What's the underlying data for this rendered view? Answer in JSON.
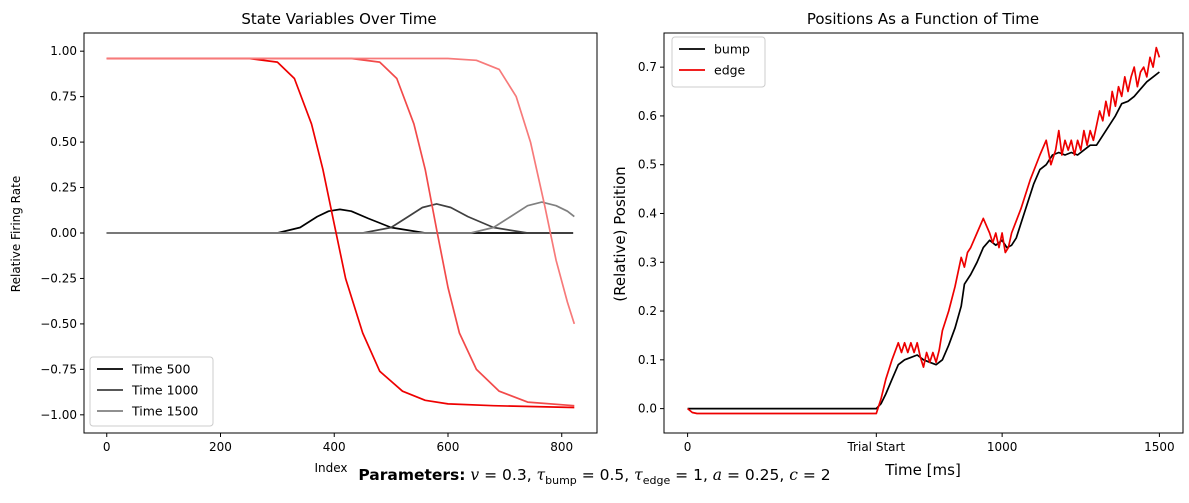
{
  "chart_data": [
    {
      "type": "line",
      "title": "State Variables Over Time",
      "xlabel": "Index",
      "ylabel": "Relative Firing Rate",
      "xlim": [
        -40,
        862
      ],
      "ylim": [
        -1.1,
        1.1
      ],
      "xticks": [
        0,
        200,
        400,
        600,
        800
      ],
      "xtick_labels": [
        "0",
        "200",
        "400",
        "600",
        "800"
      ],
      "yticks": [
        1.0,
        0.75,
        0.5,
        0.25,
        0.0,
        -0.25,
        -0.5,
        -0.75,
        -1.0
      ],
      "ytick_labels": [
        "1.00",
        "0.75",
        "0.50",
        "0.25",
        "0.00",
        "−0.25",
        "−0.50",
        "−0.75",
        "−1.00"
      ],
      "legend_position": "lower left",
      "legend": [
        "Time 500",
        "Time 1000",
        "Time 1500"
      ],
      "series": [
        {
          "name": "Time 500",
          "color": "#000000",
          "x": [
            0,
            300,
            340,
            370,
            390,
            410,
            430,
            460,
            500,
            560,
            820
          ],
          "y": [
            0,
            0,
            0.03,
            0.09,
            0.12,
            0.13,
            0.12,
            0.08,
            0.03,
            0,
            0
          ]
        },
        {
          "name": "Time 1000",
          "color": "#404040",
          "x": [
            0,
            450,
            500,
            530,
            555,
            580,
            605,
            635,
            680,
            740,
            820
          ],
          "y": [
            0,
            0,
            0.03,
            0.09,
            0.14,
            0.16,
            0.14,
            0.09,
            0.03,
            0,
            0
          ]
        },
        {
          "name": "Time 1500",
          "color": "#808080",
          "x": [
            0,
            640,
            680,
            710,
            740,
            765,
            790,
            810,
            822
          ],
          "y": [
            0,
            0,
            0.03,
            0.09,
            0.15,
            0.17,
            0.15,
            0.12,
            0.09
          ]
        },
        {
          "name": "",
          "color": "#ee0000",
          "x": [
            0,
            250,
            300,
            330,
            360,
            380,
            400,
            420,
            450,
            480,
            520,
            560,
            600,
            680,
            822
          ],
          "y": [
            0.96,
            0.96,
            0.94,
            0.85,
            0.6,
            0.35,
            0.05,
            -0.25,
            -0.55,
            -0.76,
            -0.87,
            -0.92,
            -0.94,
            -0.95,
            -0.96
          ]
        },
        {
          "name": "",
          "color": "#f24a4a",
          "x": [
            0,
            430,
            480,
            510,
            540,
            560,
            580,
            600,
            620,
            650,
            690,
            740,
            822
          ],
          "y": [
            0.96,
            0.96,
            0.94,
            0.85,
            0.6,
            0.35,
            0.02,
            -0.3,
            -0.55,
            -0.75,
            -0.87,
            -0.93,
            -0.95
          ]
        },
        {
          "name": "",
          "color": "#f77a7a",
          "x": [
            0,
            600,
            650,
            690,
            720,
            745,
            770,
            790,
            810,
            822
          ],
          "y": [
            0.96,
            0.96,
            0.95,
            0.9,
            0.75,
            0.5,
            0.15,
            -0.15,
            -0.38,
            -0.5
          ]
        }
      ]
    },
    {
      "type": "line",
      "title": "Positions As a Function of Time",
      "xlabel": "Time [ms]",
      "ylabel": "(Relative) Position",
      "xlim": [
        -75,
        1575
      ],
      "ylim": [
        -0.05,
        0.77
      ],
      "xticks": [
        0,
        600,
        1000,
        1500
      ],
      "xtick_labels": [
        "0",
        "Trial Start",
        "1000",
        "1500"
      ],
      "yticks": [
        0.0,
        0.1,
        0.2,
        0.3,
        0.4,
        0.5,
        0.6,
        0.7
      ],
      "ytick_labels": [
        "0.0",
        "0.1",
        "0.2",
        "0.3",
        "0.4",
        "0.5",
        "0.6",
        "0.7"
      ],
      "legend_position": "top-left",
      "legend": [
        "bump",
        "edge"
      ],
      "series": [
        {
          "name": "bump",
          "color": "#000000",
          "x": [
            0,
            600,
            615,
            630,
            650,
            670,
            690,
            710,
            730,
            750,
            770,
            790,
            810,
            830,
            850,
            870,
            880,
            900,
            920,
            940,
            960,
            980,
            1000,
            1015,
            1030,
            1045,
            1060,
            1080,
            1100,
            1120,
            1140,
            1160,
            1180,
            1200,
            1220,
            1240,
            1260,
            1280,
            1300,
            1320,
            1340,
            1360,
            1380,
            1400,
            1420,
            1440,
            1460,
            1480,
            1500
          ],
          "y": [
            0,
            0,
            0.01,
            0.03,
            0.06,
            0.09,
            0.1,
            0.105,
            0.11,
            0.1,
            0.095,
            0.09,
            0.1,
            0.13,
            0.165,
            0.21,
            0.255,
            0.275,
            0.3,
            0.33,
            0.345,
            0.335,
            0.345,
            0.33,
            0.335,
            0.35,
            0.38,
            0.42,
            0.46,
            0.49,
            0.5,
            0.52,
            0.525,
            0.52,
            0.525,
            0.52,
            0.53,
            0.54,
            0.54,
            0.56,
            0.58,
            0.6,
            0.625,
            0.63,
            0.64,
            0.655,
            0.67,
            0.68,
            0.69
          ]
        },
        {
          "name": "edge",
          "color": "#ee0000",
          "x": [
            0,
            15,
            30,
            600,
            615,
            630,
            650,
            670,
            680,
            690,
            700,
            710,
            720,
            730,
            740,
            750,
            760,
            770,
            780,
            790,
            800,
            810,
            830,
            850,
            870,
            880,
            890,
            900,
            920,
            940,
            960,
            970,
            980,
            990,
            1000,
            1010,
            1020,
            1030,
            1060,
            1090,
            1120,
            1140,
            1155,
            1170,
            1180,
            1190,
            1200,
            1210,
            1220,
            1230,
            1240,
            1250,
            1260,
            1270,
            1280,
            1290,
            1300,
            1310,
            1320,
            1330,
            1340,
            1350,
            1360,
            1370,
            1380,
            1390,
            1400,
            1410,
            1420,
            1430,
            1440,
            1450,
            1460,
            1470,
            1480,
            1490,
            1500
          ],
          "y": [
            0,
            -0.008,
            -0.01,
            -0.01,
            0.02,
            0.06,
            0.1,
            0.135,
            0.115,
            0.135,
            0.115,
            0.135,
            0.115,
            0.135,
            0.105,
            0.085,
            0.115,
            0.095,
            0.115,
            0.095,
            0.12,
            0.16,
            0.2,
            0.25,
            0.31,
            0.29,
            0.32,
            0.33,
            0.36,
            0.39,
            0.36,
            0.34,
            0.36,
            0.33,
            0.36,
            0.32,
            0.33,
            0.36,
            0.41,
            0.47,
            0.52,
            0.55,
            0.5,
            0.53,
            0.57,
            0.52,
            0.55,
            0.53,
            0.55,
            0.52,
            0.55,
            0.53,
            0.57,
            0.54,
            0.57,
            0.55,
            0.58,
            0.61,
            0.59,
            0.63,
            0.6,
            0.65,
            0.62,
            0.66,
            0.64,
            0.68,
            0.65,
            0.68,
            0.7,
            0.66,
            0.69,
            0.7,
            0.68,
            0.72,
            0.7,
            0.74,
            0.72
          ]
        }
      ]
    }
  ],
  "caption": {
    "label": "Parameters:",
    "v": "0.3",
    "tau_bump": "0.5",
    "tau_edge": "1",
    "a": "0.25",
    "c": "2"
  }
}
